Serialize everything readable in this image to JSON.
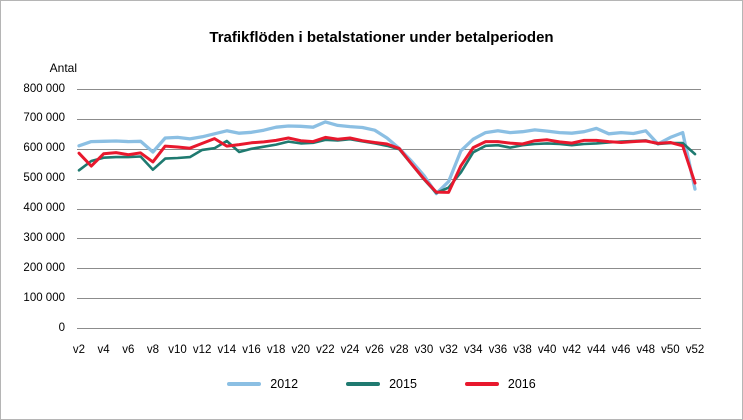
{
  "window": {
    "background": "#ffffff",
    "border_color": "#b5b5b5"
  },
  "chart_data": {
    "type": "line",
    "title": "Trafikflöden i betalstationer under betalperioden",
    "y_axis_label": "Antal",
    "xlabel": "",
    "ylabel": "Antal",
    "ylim": [
      0,
      800000
    ],
    "grid": true,
    "grid_color": "#8c8c8c",
    "legend_position": "bottom",
    "y_ticks": [
      "0",
      "100 000",
      "200 000",
      "300 000",
      "400 000",
      "500 000",
      "600 000",
      "700 000",
      "800 000"
    ],
    "x_tick_labels": [
      "v2",
      "v4",
      "v6",
      "v8",
      "v10",
      "v12",
      "v14",
      "v16",
      "v18",
      "v20",
      "v22",
      "v24",
      "v26",
      "v28",
      "v30",
      "v32",
      "v34",
      "v36",
      "v38",
      "v40",
      "v42",
      "v44",
      "v46",
      "v48",
      "v50",
      "v52"
    ],
    "x": [
      2,
      3,
      4,
      5,
      6,
      7,
      8,
      9,
      10,
      11,
      12,
      13,
      14,
      15,
      16,
      17,
      18,
      19,
      20,
      21,
      22,
      23,
      24,
      25,
      26,
      27,
      28,
      29,
      30,
      31,
      32,
      33,
      34,
      35,
      36,
      37,
      38,
      39,
      40,
      41,
      42,
      43,
      44,
      45,
      46,
      47,
      48,
      49,
      50,
      51,
      52
    ],
    "series": [
      {
        "name": "2012",
        "color": "#8bbfe3",
        "values": [
          610000,
          624000,
          625000,
          626000,
          624000,
          625000,
          589000,
          636000,
          638000,
          633000,
          640000,
          650000,
          660000,
          652000,
          655000,
          662000,
          672000,
          676000,
          675000,
          672000,
          690000,
          678000,
          674000,
          671000,
          662000,
          636000,
          601000,
          558000,
          510000,
          450000,
          490000,
          593000,
          632000,
          654000,
          660000,
          654000,
          657000,
          663000,
          659000,
          654000,
          652000,
          657000,
          668000,
          650000,
          654000,
          651000,
          660000,
          616000,
          638000,
          654000,
          465000
        ]
      },
      {
        "name": "2015",
        "color": "#1f7a70",
        "values": [
          528000,
          559000,
          570000,
          572000,
          572000,
          574000,
          530000,
          567000,
          569000,
          572000,
          596000,
          602000,
          626000,
          589000,
          600000,
          607000,
          614000,
          624000,
          618000,
          620000,
          630000,
          628000,
          632000,
          625000,
          618000,
          610000,
          598000,
          548000,
          497000,
          452000,
          470000,
          521000,
          588000,
          610000,
          612000,
          604000,
          612000,
          616000,
          618000,
          616000,
          612000,
          616000,
          618000,
          621000,
          624000,
          626000,
          628000,
          616000,
          619000,
          619000,
          582000
        ]
      },
      {
        "name": "2016",
        "color": "#e8182d",
        "values": [
          585000,
          542000,
          583000,
          587000,
          580000,
          586000,
          556000,
          609000,
          606000,
          602000,
          618000,
          634000,
          609000,
          614000,
          620000,
          623000,
          628000,
          636000,
          627000,
          624000,
          638000,
          632000,
          636000,
          627000,
          621000,
          616000,
          601000,
          549000,
          499000,
          455000,
          454000,
          543000,
          604000,
          624000,
          624000,
          619000,
          616000,
          627000,
          630000,
          623000,
          619000,
          628000,
          628000,
          624000,
          621000,
          624000,
          626000,
          618000,
          621000,
          610000,
          485000
        ]
      }
    ]
  }
}
